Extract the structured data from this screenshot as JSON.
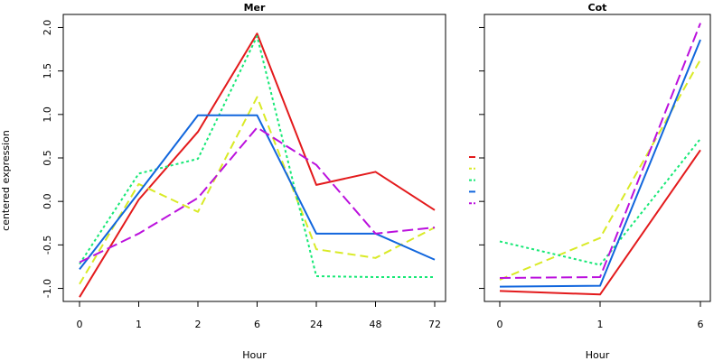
{
  "ylabel": "centered expression",
  "chart_data": [
    {
      "type": "line",
      "title": "Mer",
      "xlabel": "Hour",
      "ylabel": "centered expression",
      "categories": [
        "0",
        "1",
        "2",
        "6",
        "24",
        "48",
        "72"
      ],
      "ylim": [
        -1.15,
        2.15
      ],
      "yticks": [
        "-1.0",
        "-0.5",
        "0.0",
        "0.5",
        "1.0",
        "1.5",
        "2.0"
      ],
      "grid": false,
      "series": [
        {
          "color": "#e31a1c",
          "dash": "solid",
          "values": [
            -1.1,
            0.02,
            0.8,
            1.93,
            0.19,
            0.34,
            -0.1
          ]
        },
        {
          "color": "#d9ea26",
          "dash": "dashed",
          "values": [
            -0.95,
            0.2,
            -0.12,
            1.2,
            -0.55,
            -0.65,
            -0.3
          ]
        },
        {
          "color": "#17e876",
          "dash": "dotted",
          "values": [
            -0.72,
            0.32,
            0.49,
            1.9,
            -0.86,
            -0.87,
            -0.87
          ]
        },
        {
          "color": "#1166dd",
          "dash": "solid",
          "values": [
            -0.78,
            0.1,
            0.99,
            0.99,
            -0.37,
            -0.37,
            -0.67
          ]
        },
        {
          "color": "#bb11dd",
          "dash": "longdash",
          "values": [
            -0.7,
            -0.37,
            0.04,
            0.85,
            0.42,
            -0.37,
            -0.3
          ]
        }
      ]
    },
    {
      "type": "line",
      "title": "Cot",
      "xlabel": "Hour",
      "categories": [
        "0",
        "1",
        "6"
      ],
      "ylim": [
        -1.15,
        2.15
      ],
      "grid": false,
      "series": [
        {
          "color": "#e31a1c",
          "dash": "solid",
          "values": [
            -1.03,
            -1.07,
            0.59
          ]
        },
        {
          "color": "#d9ea26",
          "dash": "dashed",
          "values": [
            -0.9,
            -0.42,
            1.63
          ]
        },
        {
          "color": "#17e876",
          "dash": "dotted",
          "values": [
            -0.46,
            -0.73,
            0.72
          ]
        },
        {
          "color": "#1166dd",
          "dash": "solid",
          "values": [
            -0.98,
            -0.97,
            1.86
          ]
        },
        {
          "color": "#bb11dd",
          "dash": "longdash",
          "values": [
            -0.88,
            -0.87,
            2.05
          ]
        }
      ]
    }
  ]
}
